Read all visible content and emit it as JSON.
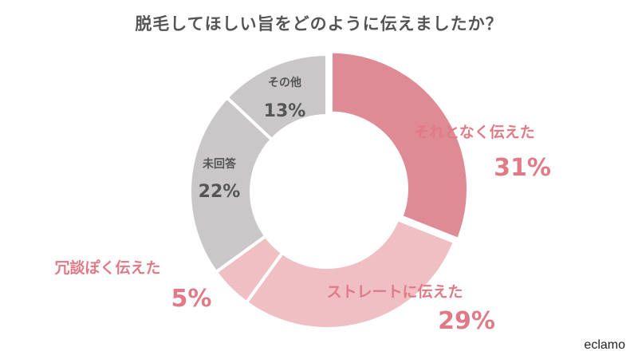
{
  "title": "脱毛してほしい旨をどのように伝えましたか？",
  "brand": "eclamo",
  "chart_data": {
    "type": "pie",
    "style": "donut",
    "title": "脱毛してほしい旨をどのように伝えましたか？",
    "categories": [
      "それとなく伝えた",
      "ストレートに伝えた",
      "冗談ぽく伝えた",
      "未回答",
      "その他"
    ],
    "values": [
      31,
      29,
      5,
      22,
      13
    ],
    "value_labels": [
      "31%",
      "29%",
      "5%",
      "22%",
      "13%"
    ],
    "colors": [
      "#de8b95",
      "#efbfc4",
      "#efbfc4",
      "#c9c7c7",
      "#c9c7c7"
    ],
    "label_colors": [
      "#e07a87",
      "#e07a87",
      "#e07a87",
      "#555555",
      "#555555"
    ],
    "legend": "none"
  }
}
